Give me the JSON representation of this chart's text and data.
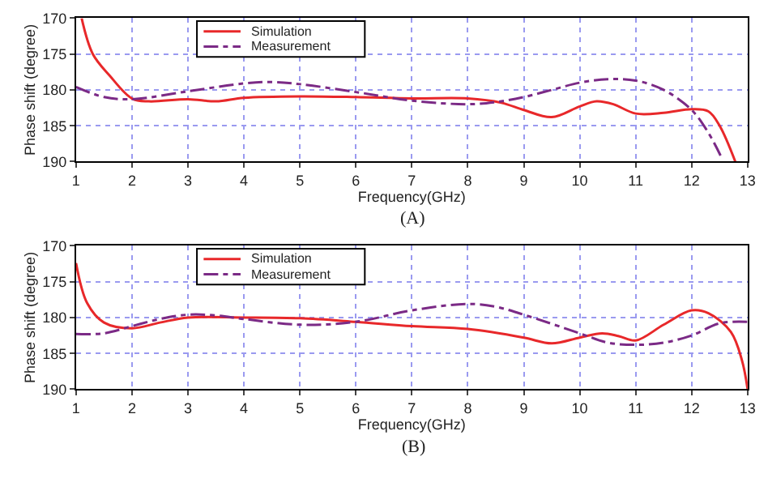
{
  "chart_data": [
    {
      "type": "line",
      "xlabel": "Frequency(GHz)",
      "ylabel": "Phase shift (degree)",
      "annotations": [
        "(A)"
      ],
      "xlim": [
        1,
        13
      ],
      "xticks": [
        1,
        2,
        3,
        4,
        5,
        6,
        7,
        8,
        9,
        10,
        11,
        12,
        13
      ],
      "ylim": [
        190,
        170
      ],
      "yticks": [
        170,
        175,
        180,
        185,
        190
      ],
      "grid": true,
      "legend": "top left",
      "marker": "none",
      "series": [
        {
          "name": "Simulation",
          "color": "#e8282a",
          "line_style": "solid",
          "x": [
            1.1,
            1.3,
            1.6,
            2,
            2.3,
            3,
            3.5,
            4,
            5,
            6,
            7,
            8,
            8.6,
            9,
            9.5,
            10,
            10.3,
            10.6,
            11,
            11.5,
            12,
            12.3,
            12.5,
            12.78
          ],
          "values": [
            170,
            175,
            178,
            181.2,
            181.6,
            181.3,
            181.6,
            181.1,
            180.9,
            181,
            181.2,
            181.2,
            181.8,
            182.8,
            183.8,
            182.3,
            181.6,
            182,
            183.3,
            183.2,
            182.7,
            183,
            185,
            190
          ]
        },
        {
          "name": "Measurement",
          "color": "#7b2a86",
          "line_style": "dashdot",
          "x": [
            1,
            1.5,
            2,
            3,
            4,
            4.5,
            5,
            6,
            7,
            8,
            8.5,
            9,
            9.5,
            10,
            10.5,
            11,
            11.5,
            12,
            12.3,
            12.55
          ],
          "values": [
            179.6,
            181,
            181.3,
            180.2,
            179.1,
            178.9,
            179.2,
            180.3,
            181.5,
            182,
            181.7,
            181,
            180,
            179,
            178.5,
            178.7,
            180,
            182.8,
            186,
            189.7
          ]
        }
      ]
    },
    {
      "type": "line",
      "xlabel": "Frequency(GHz)",
      "ylabel": "Phase shift (degree)",
      "annotations": [
        "(B)"
      ],
      "xlim": [
        1,
        13
      ],
      "xticks": [
        1,
        2,
        3,
        4,
        5,
        6,
        7,
        8,
        9,
        10,
        11,
        12,
        13
      ],
      "ylim": [
        190,
        170
      ],
      "yticks": [
        170,
        175,
        180,
        185,
        190
      ],
      "grid": true,
      "legend": "top left",
      "marker": "none",
      "series": [
        {
          "name": "Simulation",
          "color": "#e8282a",
          "line_style": "solid",
          "x": [
            1,
            1.2,
            1.5,
            2,
            2.5,
            3,
            4,
            5,
            6,
            7,
            8,
            9,
            9.5,
            10,
            10.4,
            10.7,
            11,
            11.5,
            12,
            12.3,
            12.7,
            12.9,
            13
          ],
          "values": [
            172.4,
            178,
            180.7,
            181.5,
            180.7,
            180,
            180,
            180.1,
            180.6,
            181.2,
            181.6,
            182.8,
            183.6,
            182.8,
            182.2,
            182.6,
            183.2,
            181,
            179,
            179.4,
            182,
            186,
            190
          ]
        },
        {
          "name": "Measurement",
          "color": "#7b2a86",
          "line_style": "dashdot",
          "x": [
            1,
            1.5,
            2,
            2.5,
            3,
            3.5,
            4,
            5,
            6,
            7,
            8,
            8.5,
            9,
            10,
            10.5,
            11,
            11.5,
            12,
            12.5,
            13
          ],
          "values": [
            182.3,
            182.2,
            181.2,
            180.2,
            179.6,
            179.7,
            180.2,
            181,
            180.6,
            179,
            178.1,
            178.5,
            179.6,
            182.2,
            183.5,
            183.8,
            183.5,
            182.5,
            180.8,
            180.6
          ]
        }
      ]
    }
  ]
}
